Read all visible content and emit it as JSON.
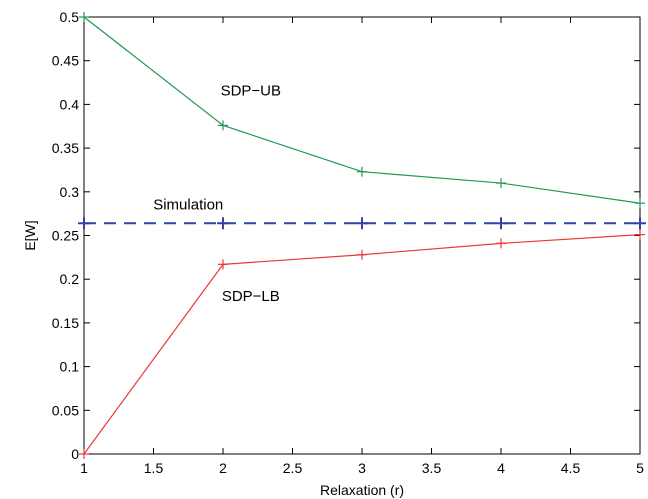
{
  "chart_data": {
    "type": "line",
    "title": "",
    "xlabel": "Relaxation (r)",
    "ylabel": "E[W]",
    "xlim": [
      1,
      5
    ],
    "ylim": [
      0,
      0.5
    ],
    "xticks": [
      1,
      1.5,
      2,
      2.5,
      3,
      3.5,
      4,
      4.5,
      5
    ],
    "xtick_labels": [
      "1",
      "1.5",
      "2",
      "2.5",
      "3",
      "3.5",
      "4",
      "4.5",
      "5"
    ],
    "yticks": [
      0,
      0.05,
      0.1,
      0.15,
      0.2,
      0.25,
      0.3,
      0.35,
      0.4,
      0.45,
      0.5
    ],
    "ytick_labels": [
      "0",
      "0.05",
      "0.1",
      "0.15",
      "0.2",
      "0.25",
      "0.3",
      "0.35",
      "0.4",
      "0.45",
      "0.5"
    ],
    "grid": false,
    "legend": "none",
    "x": [
      1,
      2,
      3,
      4,
      5
    ],
    "series": [
      {
        "name": "SDP-UB",
        "values": [
          0.5,
          0.376,
          0.323,
          0.31,
          0.287
        ],
        "color": "#1f9a4f",
        "style": "solid",
        "marker": "plus"
      },
      {
        "name": "Simulation",
        "values": [
          0.264,
          0.264,
          0.264,
          0.264,
          0.264
        ],
        "color": "#3342a6",
        "style": "dashed",
        "marker": "plus"
      },
      {
        "name": "SDP-LB",
        "values": [
          0.0,
          0.217,
          0.228,
          0.241,
          0.251
        ],
        "color": "#e83a3a",
        "style": "solid",
        "marker": "plus"
      }
    ],
    "annotations": [
      {
        "text": "SDP−UB",
        "x": 2.2,
        "y": 0.41
      },
      {
        "text": "Simulation",
        "x": 1.75,
        "y": 0.28
      },
      {
        "text": "SDP−LB",
        "x": 2.2,
        "y": 0.175
      }
    ]
  }
}
